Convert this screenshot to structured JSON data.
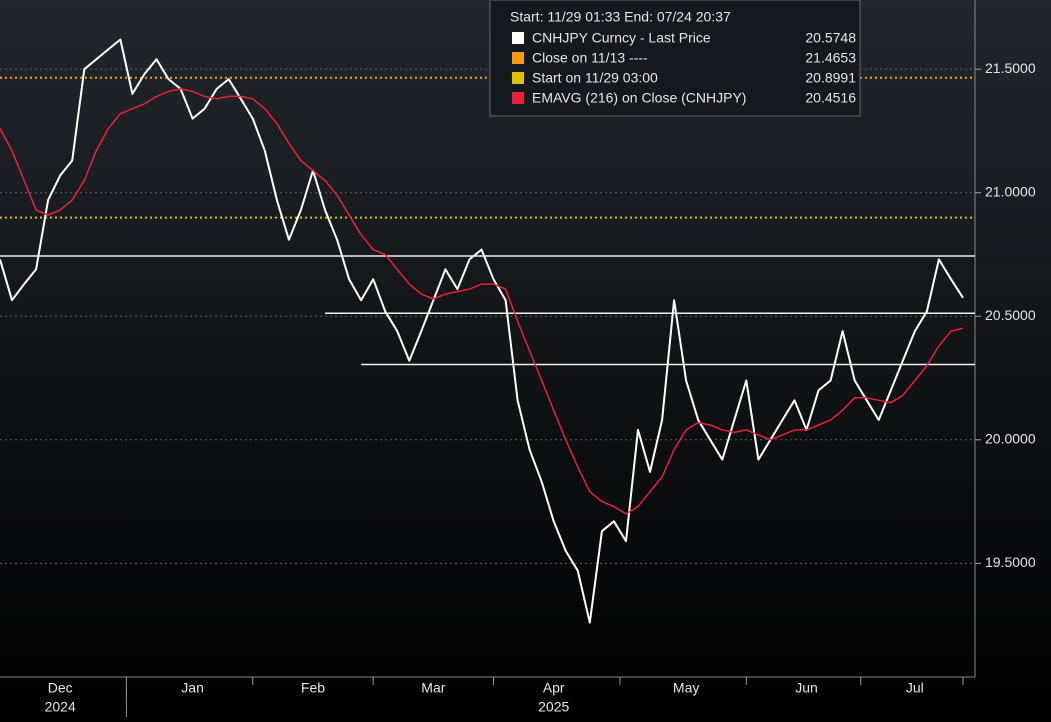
{
  "chart_data": {
    "type": "line",
    "legend_header": "Start: 11/29 01:33 End: 07/24 20:37",
    "x": [
      null,
      null,
      null,
      null,
      null,
      "Dec",
      null,
      null,
      null,
      null,
      null,
      null,
      null,
      null,
      null,
      null,
      "Jan",
      null,
      null,
      null,
      null,
      null,
      null,
      null,
      null,
      null,
      "Feb",
      null,
      null,
      null,
      null,
      null,
      null,
      null,
      null,
      null,
      "Mar",
      null,
      null,
      null,
      null,
      null,
      null,
      null,
      null,
      null,
      "Apr",
      null,
      null,
      null,
      null,
      null,
      null,
      null,
      null,
      null,
      null,
      "May",
      null,
      null,
      null,
      null,
      null,
      null,
      null,
      null,
      null,
      "Jun",
      null,
      null,
      null,
      null,
      null,
      null,
      null,
      null,
      "Jul",
      null,
      null,
      null,
      null
    ],
    "x_year": [
      null,
      null,
      null,
      null,
      null,
      "2024",
      null,
      null,
      null,
      null,
      null,
      null,
      null,
      null,
      null,
      null,
      null,
      null,
      null,
      null,
      null,
      null,
      null,
      null,
      null,
      null,
      null,
      null,
      null,
      null,
      null,
      null,
      null,
      null,
      null,
      null,
      null,
      null,
      null,
      null,
      null,
      null,
      null,
      null,
      null,
      null,
      "2025",
      null,
      null,
      null,
      null,
      null,
      null,
      null,
      null,
      null,
      null,
      null,
      null,
      null,
      null,
      null,
      null,
      null,
      null,
      null,
      null,
      null,
      null,
      null,
      null,
      null,
      null,
      null,
      null,
      null,
      null,
      null,
      null,
      null,
      null
    ],
    "series": [
      {
        "name": "CNHJPY Curncy - Last Price",
        "color": "#ffffff",
        "last": 20.5748,
        "values": [
          20.73,
          20.565,
          20.63,
          20.69,
          20.97,
          21.07,
          21.13,
          21.5,
          21.54,
          21.58,
          21.62,
          21.4,
          21.48,
          21.54,
          21.46,
          21.42,
          21.3,
          21.34,
          21.42,
          21.46,
          21.38,
          21.3,
          21.17,
          20.97,
          20.81,
          20.93,
          21.09,
          20.93,
          20.81,
          20.65,
          20.565,
          20.65,
          20.52,
          20.44,
          20.32,
          20.44,
          20.565,
          20.69,
          20.61,
          20.73,
          20.77,
          20.65,
          20.565,
          20.16,
          19.96,
          19.83,
          19.67,
          19.55,
          19.47,
          19.26,
          19.63,
          19.67,
          19.59,
          20.04,
          19.87,
          20.08,
          20.565,
          20.24,
          20.08,
          20.0,
          19.92,
          20.08,
          20.24,
          19.92,
          20.0,
          20.08,
          20.16,
          20.04,
          20.2,
          20.24,
          20.44,
          20.24,
          20.16,
          20.08,
          20.2,
          20.32,
          20.44,
          20.52,
          20.73,
          20.65,
          20.5748
        ]
      },
      {
        "name": "EMAVG (216)  on Close (CNHJPY)",
        "color": "#e8213a",
        "last": 20.4516,
        "values": [
          21.26,
          21.17,
          21.05,
          20.93,
          20.91,
          20.93,
          20.97,
          21.05,
          21.17,
          21.26,
          21.32,
          21.34,
          21.36,
          21.39,
          21.41,
          21.42,
          21.41,
          21.39,
          21.38,
          21.39,
          21.39,
          21.38,
          21.34,
          21.28,
          21.2,
          21.13,
          21.09,
          21.05,
          20.99,
          20.91,
          20.83,
          20.77,
          20.75,
          20.69,
          20.63,
          20.59,
          20.57,
          20.59,
          20.6,
          20.61,
          20.63,
          20.63,
          20.61,
          20.48,
          20.36,
          20.24,
          20.12,
          20.0,
          19.89,
          19.79,
          19.75,
          19.73,
          19.7,
          19.73,
          19.79,
          19.85,
          19.96,
          20.04,
          20.07,
          20.06,
          20.04,
          20.03,
          20.04,
          20.02,
          20.0,
          20.02,
          20.04,
          20.04,
          20.06,
          20.08,
          20.12,
          20.17,
          20.17,
          20.16,
          20.15,
          20.18,
          20.24,
          20.3,
          20.38,
          20.44,
          20.4516
        ]
      }
    ],
    "ref_lines": [
      {
        "name": "Close on 11/13 ----",
        "color": "#f39c12",
        "value": 21.4653
      },
      {
        "name": "Start on 11/29 03:00",
        "color": "#e0c000",
        "value": 20.8991
      }
    ],
    "trend_lines": [
      {
        "value": 20.744,
        "from": 0
      },
      {
        "value": 20.512,
        "from": 27
      },
      {
        "value": 20.305,
        "from": 30
      }
    ],
    "ylim": [
      19.04,
      21.78
    ],
    "yticks": [
      {
        "value": 21.5,
        "label": "21.5000"
      },
      {
        "value": 21.0,
        "label": "21.0000"
      },
      {
        "value": 20.5,
        "label": "20.5000"
      },
      {
        "value": 20.0,
        "label": "20.0000"
      },
      {
        "value": 19.5,
        "label": "19.5000"
      }
    ],
    "grid": true
  }
}
